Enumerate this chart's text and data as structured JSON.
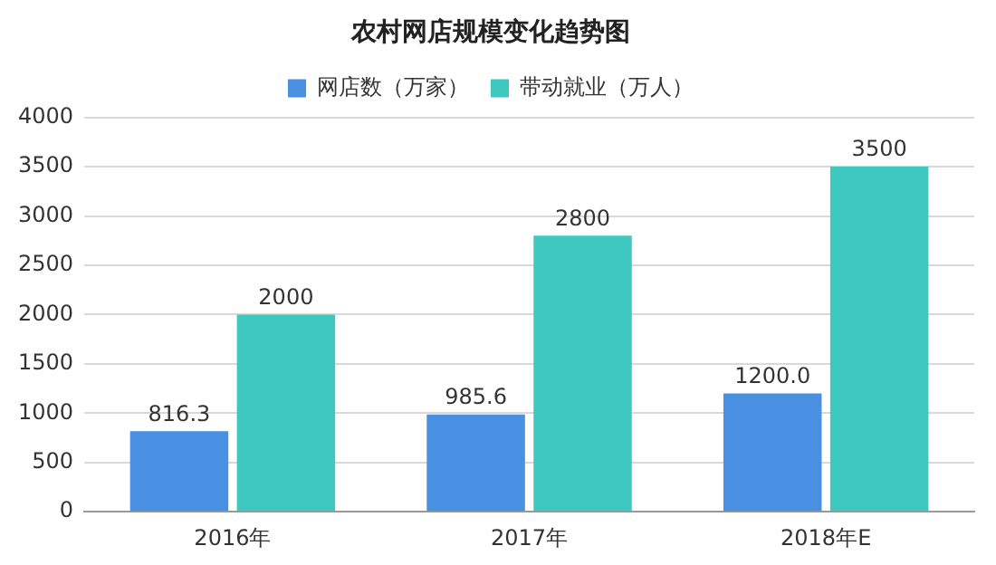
{
  "chart_data": {
    "type": "bar",
    "title": "农村网店规模变化趋势图",
    "categories": [
      "2016年",
      "2017年",
      "2018年E"
    ],
    "series": [
      {
        "name": "网店数（万家）",
        "color": "#4a90e2",
        "values": [
          816.3,
          985.6,
          1200.0
        ],
        "value_labels": [
          "816.3",
          "985.6",
          "1200.0"
        ]
      },
      {
        "name": "带动就业（万人）",
        "color": "#3ec8c0",
        "values": [
          2000,
          2800,
          3500
        ],
        "value_labels": [
          "2000",
          "2800",
          "3500"
        ]
      }
    ],
    "ylim": [
      0,
      4000
    ],
    "yticks": [
      0,
      500,
      1000,
      1500,
      2000,
      2500,
      3000,
      3500,
      4000
    ],
    "grid": "y",
    "legend": "top"
  }
}
